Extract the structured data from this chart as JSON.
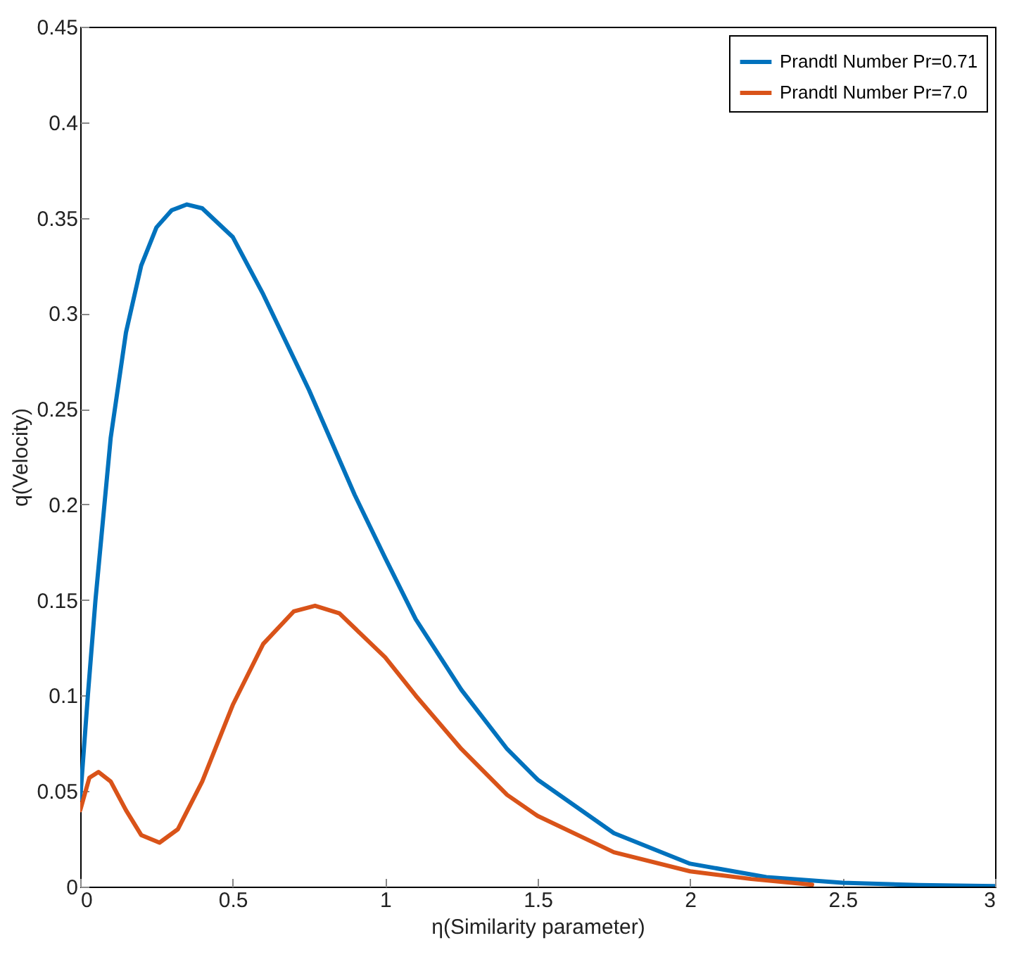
{
  "chart_data": {
    "type": "line",
    "xlabel": "η(Similarity parameter)",
    "ylabel": "q(Velocity)",
    "xlim": [
      0,
      3
    ],
    "ylim": [
      0,
      0.45
    ],
    "xticks": [
      0,
      0.5,
      1,
      1.5,
      2,
      2.5,
      3
    ],
    "yticks": [
      0,
      0.05,
      0.1,
      0.15,
      0.2,
      0.25,
      0.3,
      0.35,
      0.4,
      0.45
    ],
    "grid": false,
    "legend": "top right",
    "line_style": "solid",
    "marker": "none",
    "series": [
      {
        "name": "Prandtl Number Pr=0.71",
        "color": "#0072bd",
        "x": [
          0,
          0.025,
          0.05,
          0.1,
          0.15,
          0.2,
          0.25,
          0.3,
          0.35,
          0.4,
          0.5,
          0.6,
          0.75,
          0.9,
          1.0,
          1.1,
          1.25,
          1.4,
          1.5,
          1.75,
          2.0,
          2.25,
          2.5,
          2.75,
          3.0
        ],
        "values": [
          0.046,
          0.1,
          0.15,
          0.235,
          0.29,
          0.325,
          0.345,
          0.354,
          0.357,
          0.355,
          0.34,
          0.31,
          0.26,
          0.205,
          0.172,
          0.14,
          0.103,
          0.072,
          0.056,
          0.028,
          0.012,
          0.005,
          0.002,
          0.0008,
          0.0003
        ]
      },
      {
        "name": "Prandtl Number Pr=7.0",
        "color": "#d95319",
        "x": [
          0,
          0.03,
          0.06,
          0.1,
          0.15,
          0.2,
          0.26,
          0.32,
          0.4,
          0.5,
          0.6,
          0.7,
          0.77,
          0.85,
          1.0,
          1.1,
          1.25,
          1.4,
          1.5,
          1.75,
          2.0,
          2.2,
          2.4
        ],
        "values": [
          0.04,
          0.057,
          0.06,
          0.055,
          0.04,
          0.027,
          0.023,
          0.03,
          0.055,
          0.095,
          0.127,
          0.144,
          0.147,
          0.143,
          0.12,
          0.1,
          0.072,
          0.048,
          0.037,
          0.018,
          0.008,
          0.004,
          0.001
        ]
      }
    ]
  }
}
